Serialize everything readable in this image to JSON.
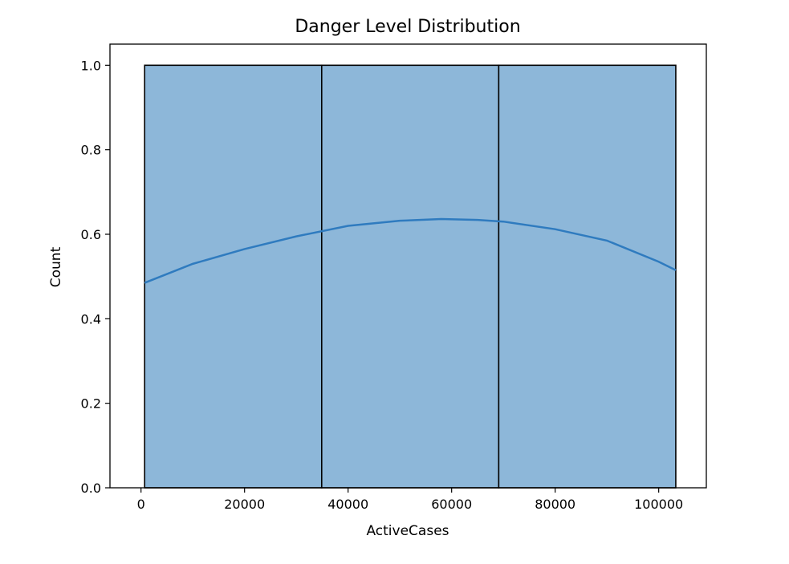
{
  "chart_data": {
    "type": "bar",
    "title": "Danger Level Distribution",
    "xlabel": "ActiveCases",
    "ylabel": "Count",
    "xlim": [
      -6000,
      109200
    ],
    "ylim": [
      0,
      1.05
    ],
    "x_ticks": [
      0,
      20000,
      40000,
      60000,
      80000,
      100000
    ],
    "x_tick_labels": [
      "0",
      "20000",
      "40000",
      "60000",
      "80000",
      "100000"
    ],
    "y_ticks": [
      0.0,
      0.2,
      0.4,
      0.6,
      0.8,
      1.0
    ],
    "y_tick_labels": [
      "0.0",
      "0.2",
      "0.4",
      "0.6",
      "0.8",
      "1.0"
    ],
    "bins": [
      {
        "x_start": 700,
        "x_end": 34900,
        "count": 1
      },
      {
        "x_start": 34900,
        "x_end": 69100,
        "count": 1
      },
      {
        "x_start": 69100,
        "x_end": 103300,
        "count": 1
      }
    ],
    "kde_line": {
      "x": [
        700,
        10000,
        20000,
        30000,
        40000,
        50000,
        58000,
        65000,
        70000,
        80000,
        90000,
        100000,
        103300
      ],
      "y": [
        0.485,
        0.53,
        0.565,
        0.595,
        0.62,
        0.632,
        0.636,
        0.634,
        0.63,
        0.612,
        0.585,
        0.535,
        0.515
      ]
    },
    "grid": false,
    "colors": {
      "bar_fill": "#8db7d9",
      "bar_edge": "#000000",
      "kde_line": "#2f7bbf"
    }
  }
}
